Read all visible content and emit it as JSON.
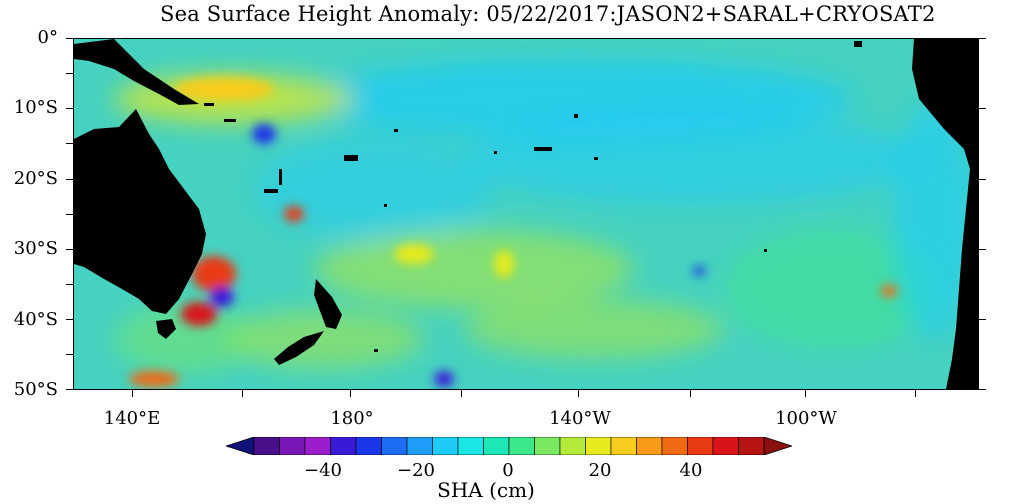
{
  "title": "Sea Surface Height Anomaly: 05/22/2017:JASON2+SARAL+CRYOSAT2",
  "lat_labels": [
    "0°",
    "10°S",
    "20°S",
    "30°S",
    "40°S",
    "50°S"
  ],
  "lon_labels": [
    "140°E",
    "180°",
    "140°W",
    "100°W"
  ],
  "colorbar": {
    "title": "SHA (cm)",
    "tick_labels": [
      "−40",
      "−20",
      "0",
      "20",
      "40"
    ],
    "colors": [
      "#11117a",
      "#4a0f8a",
      "#7a16b5",
      "#9a1ec9",
      "#3a1ad6",
      "#1a36e6",
      "#1e6cf2",
      "#1e9cf7",
      "#1ecbf7",
      "#1ae6e6",
      "#1ee6b4",
      "#3ce88a",
      "#7ae862",
      "#b4ea3a",
      "#e6ea1e",
      "#f7cc1e",
      "#f79a1a",
      "#f06a14",
      "#e83a14",
      "#d8141a",
      "#b41414",
      "#8a1010"
    ]
  },
  "colors": {
    "land": "#000000",
    "ocean_base": "#46d2c0"
  }
}
